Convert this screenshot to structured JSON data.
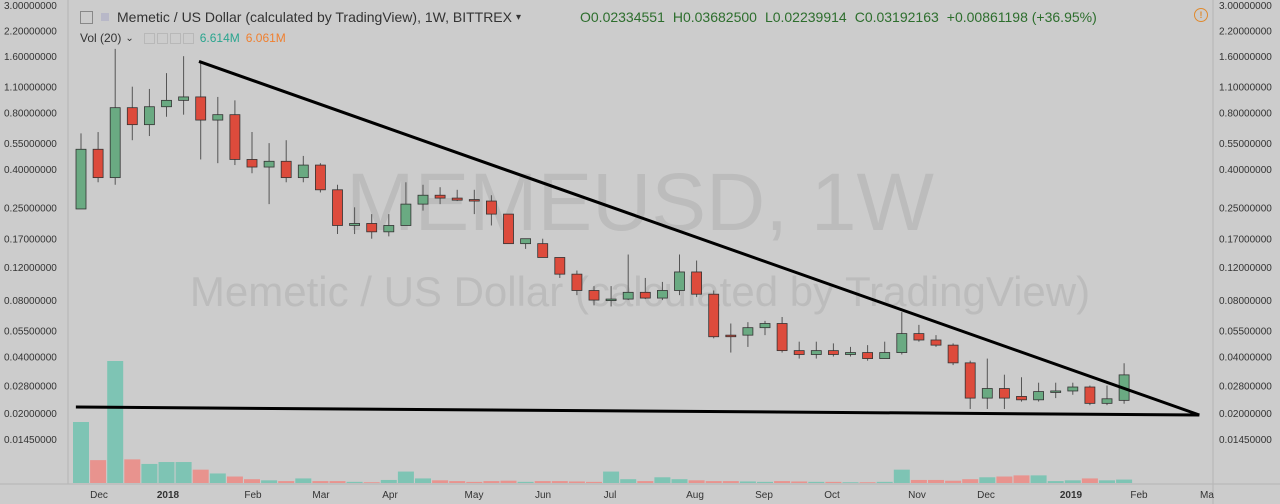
{
  "header": {
    "symbol_title": "Memetic / US Dollar (calculated by TradingView), 1W, BITTREX",
    "open": "O0.02334551",
    "high": "H0.03682500",
    "low": "L0.02239914",
    "close": "C0.03192163",
    "change": "+0.00861198 (+36.95%)"
  },
  "volume_legend": {
    "label": "Vol (20)",
    "value1": "6.614M",
    "value2": "6.061M"
  },
  "watermark": {
    "line1": "MEMEUSD, 1W",
    "line2": "Memetic / US Dollar (calculated by TradingView)"
  },
  "colors": {
    "up": "#6aaa82",
    "down": "#dd4b3c",
    "vol_up": "#7ec4b4",
    "vol_down": "#e8938e",
    "background": "#cccccc",
    "ohlc_text": "#2d6e2d",
    "vol1_text": "#2aa58f",
    "vol2_text": "#f08030"
  },
  "chart_data": {
    "type": "candlestick",
    "scale": "log",
    "ylim": [
      0.0115,
      3.0
    ],
    "price_axis_labels": [
      "3.00000000",
      "2.20000000",
      "1.60000000",
      "1.10000000",
      "0.80000000",
      "0.55000000",
      "0.40000000",
      "0.25000000",
      "0.17000000",
      "0.12000000",
      "0.08000000",
      "0.05500000",
      "0.04000000",
      "0.02800000",
      "0.02000000",
      "0.01450000"
    ],
    "time_axis_labels": [
      "Dec",
      "2018",
      "Feb",
      "Mar",
      "Apr",
      "May",
      "Jun",
      "Jul",
      "Aug",
      "Sep",
      "Oct",
      "Nov",
      "Dec",
      "2019",
      "Feb",
      "Ma"
    ],
    "candles": [
      {
        "o": 0.245,
        "h": 0.62,
        "l": 0.245,
        "c": 0.51
      },
      {
        "o": 0.51,
        "h": 0.63,
        "l": 0.34,
        "c": 0.36
      },
      {
        "o": 0.36,
        "h": 1.75,
        "l": 0.33,
        "c": 0.85
      },
      {
        "o": 0.85,
        "h": 1.1,
        "l": 0.57,
        "c": 0.69
      },
      {
        "o": 0.69,
        "h": 1.07,
        "l": 0.6,
        "c": 0.86
      },
      {
        "o": 0.86,
        "h": 1.3,
        "l": 0.76,
        "c": 0.93
      },
      {
        "o": 0.93,
        "h": 1.6,
        "l": 0.78,
        "c": 0.97
      },
      {
        "o": 0.97,
        "h": 1.5,
        "l": 0.45,
        "c": 0.73
      },
      {
        "o": 0.73,
        "h": 0.97,
        "l": 0.43,
        "c": 0.78
      },
      {
        "o": 0.78,
        "h": 0.93,
        "l": 0.42,
        "c": 0.45
      },
      {
        "o": 0.45,
        "h": 0.63,
        "l": 0.38,
        "c": 0.41
      },
      {
        "o": 0.41,
        "h": 0.55,
        "l": 0.26,
        "c": 0.44
      },
      {
        "o": 0.44,
        "h": 0.57,
        "l": 0.34,
        "c": 0.36
      },
      {
        "o": 0.36,
        "h": 0.47,
        "l": 0.34,
        "c": 0.42
      },
      {
        "o": 0.42,
        "h": 0.43,
        "l": 0.3,
        "c": 0.31
      },
      {
        "o": 0.31,
        "h": 0.33,
        "l": 0.18,
        "c": 0.2
      },
      {
        "o": 0.2,
        "h": 0.25,
        "l": 0.18,
        "c": 0.205
      },
      {
        "o": 0.205,
        "h": 0.23,
        "l": 0.17,
        "c": 0.185
      },
      {
        "o": 0.185,
        "h": 0.23,
        "l": 0.175,
        "c": 0.2
      },
      {
        "o": 0.2,
        "h": 0.34,
        "l": 0.2,
        "c": 0.26
      },
      {
        "o": 0.26,
        "h": 0.33,
        "l": 0.24,
        "c": 0.29
      },
      {
        "o": 0.29,
        "h": 0.32,
        "l": 0.26,
        "c": 0.28
      },
      {
        "o": 0.28,
        "h": 0.31,
        "l": 0.27,
        "c": 0.273
      },
      {
        "o": 0.275,
        "h": 0.31,
        "l": 0.23,
        "c": 0.27
      },
      {
        "o": 0.27,
        "h": 0.29,
        "l": 0.2,
        "c": 0.23
      },
      {
        "o": 0.23,
        "h": 0.23,
        "l": 0.17,
        "c": 0.16
      },
      {
        "o": 0.16,
        "h": 0.17,
        "l": 0.15,
        "c": 0.17
      },
      {
        "o": 0.16,
        "h": 0.17,
        "l": 0.14,
        "c": 0.135
      },
      {
        "o": 0.135,
        "h": 0.135,
        "l": 0.105,
        "c": 0.11
      },
      {
        "o": 0.11,
        "h": 0.115,
        "l": 0.085,
        "c": 0.09
      },
      {
        "o": 0.09,
        "h": 0.095,
        "l": 0.075,
        "c": 0.08
      },
      {
        "o": 0.08,
        "h": 0.095,
        "l": 0.074,
        "c": 0.081
      },
      {
        "o": 0.081,
        "h": 0.14,
        "l": 0.08,
        "c": 0.088
      },
      {
        "o": 0.088,
        "h": 0.105,
        "l": 0.081,
        "c": 0.082
      },
      {
        "o": 0.082,
        "h": 0.1,
        "l": 0.08,
        "c": 0.09
      },
      {
        "o": 0.09,
        "h": 0.14,
        "l": 0.085,
        "c": 0.113
      },
      {
        "o": 0.113,
        "h": 0.13,
        "l": 0.083,
        "c": 0.086
      },
      {
        "o": 0.086,
        "h": 0.09,
        "l": 0.05,
        "c": 0.051
      },
      {
        "o": 0.052,
        "h": 0.06,
        "l": 0.042,
        "c": 0.051
      },
      {
        "o": 0.052,
        "h": 0.061,
        "l": 0.045,
        "c": 0.057
      },
      {
        "o": 0.057,
        "h": 0.062,
        "l": 0.052,
        "c": 0.06
      },
      {
        "o": 0.06,
        "h": 0.065,
        "l": 0.042,
        "c": 0.043
      },
      {
        "o": 0.043,
        "h": 0.048,
        "l": 0.039,
        "c": 0.041
      },
      {
        "o": 0.041,
        "h": 0.048,
        "l": 0.039,
        "c": 0.043
      },
      {
        "o": 0.043,
        "h": 0.047,
        "l": 0.04,
        "c": 0.041
      },
      {
        "o": 0.041,
        "h": 0.045,
        "l": 0.04,
        "c": 0.042
      },
      {
        "o": 0.042,
        "h": 0.046,
        "l": 0.038,
        "c": 0.039
      },
      {
        "o": 0.039,
        "h": 0.048,
        "l": 0.039,
        "c": 0.042
      },
      {
        "o": 0.042,
        "h": 0.069,
        "l": 0.041,
        "c": 0.053
      },
      {
        "o": 0.053,
        "h": 0.059,
        "l": 0.048,
        "c": 0.049
      },
      {
        "o": 0.049,
        "h": 0.052,
        "l": 0.045,
        "c": 0.046
      },
      {
        "o": 0.046,
        "h": 0.047,
        "l": 0.036,
        "c": 0.037
      },
      {
        "o": 0.037,
        "h": 0.038,
        "l": 0.021,
        "c": 0.024
      },
      {
        "o": 0.024,
        "h": 0.039,
        "l": 0.021,
        "c": 0.027
      },
      {
        "o": 0.027,
        "h": 0.032,
        "l": 0.021,
        "c": 0.024
      },
      {
        "o": 0.0245,
        "h": 0.031,
        "l": 0.023,
        "c": 0.0235
      },
      {
        "o": 0.0235,
        "h": 0.029,
        "l": 0.023,
        "c": 0.026
      },
      {
        "o": 0.026,
        "h": 0.029,
        "l": 0.024,
        "c": 0.0262
      },
      {
        "o": 0.0262,
        "h": 0.029,
        "l": 0.025,
        "c": 0.0275
      },
      {
        "o": 0.0275,
        "h": 0.028,
        "l": 0.022,
        "c": 0.0225
      },
      {
        "o": 0.0225,
        "h": 0.028,
        "l": 0.022,
        "c": 0.0238
      },
      {
        "o": 0.02334551,
        "h": 0.036825,
        "l": 0.02239914,
        "c": 0.03192163
      }
    ],
    "volume": [
      1.6,
      0.6,
      3.2,
      0.62,
      0.5,
      0.55,
      0.55,
      0.35,
      0.25,
      0.17,
      0.1,
      0.07,
      0.05,
      0.12,
      0.05,
      0.05,
      0.03,
      0.02,
      0.08,
      0.3,
      0.12,
      0.07,
      0.05,
      0.03,
      0.05,
      0.06,
      0.03,
      0.05,
      0.05,
      0.04,
      0.03,
      0.3,
      0.1,
      0.05,
      0.15,
      0.1,
      0.07,
      0.05,
      0.05,
      0.04,
      0.03,
      0.05,
      0.04,
      0.03,
      0.03,
      0.02,
      0.02,
      0.03,
      0.35,
      0.08,
      0.08,
      0.06,
      0.1,
      0.15,
      0.17,
      0.2,
      0.2,
      0.05,
      0.07,
      0.12,
      0.07,
      0.09
    ],
    "trendlines": [
      {
        "from": {
          "i": 6.9,
          "price": 1.5
        },
        "to": {
          "i": 65.4,
          "price": 0.0195
        }
      },
      {
        "from": {
          "i": -0.3,
          "price": 0.0215
        },
        "to": {
          "i": 65.4,
          "price": 0.0195
        }
      }
    ]
  }
}
